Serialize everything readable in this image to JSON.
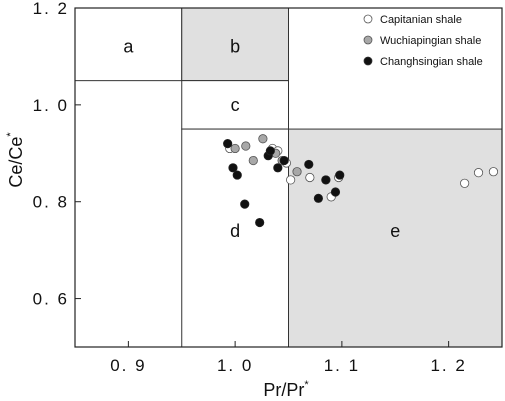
{
  "chart_data": {
    "type": "scatter",
    "xlabel": "Pr/Pr",
    "xlabel_sup": "*",
    "ylabel": "Ce/Ce",
    "ylabel_sup": "*",
    "xlim": [
      0.85,
      1.25
    ],
    "ylim": [
      0.5,
      1.2
    ],
    "xticks": [
      0.9,
      1.0,
      1.1,
      1.2
    ],
    "xtick_labels": [
      "0. 9",
      "1. 0",
      "1. 1",
      "1. 2"
    ],
    "yticks": [
      0.6,
      0.8,
      1.0,
      1.2
    ],
    "ytick_labels": [
      "0. 6",
      "0. 8",
      "1. 0",
      "1. 2"
    ],
    "legend_position": "top-right",
    "regions": [
      {
        "label": "a",
        "x": [
          0.85,
          0.95
        ],
        "y": [
          1.05,
          1.2
        ],
        "fill": "#ffffff"
      },
      {
        "label": "b",
        "x": [
          0.95,
          1.05
        ],
        "y": [
          1.05,
          1.2
        ],
        "fill": "#e0e0e0"
      },
      {
        "label": "c",
        "x": [
          0.95,
          1.05
        ],
        "y": [
          0.95,
          1.05
        ],
        "fill": "#ffffff"
      },
      {
        "label": "d",
        "x": [
          0.95,
          1.05
        ],
        "y": [
          0.5,
          0.95
        ],
        "fill": "#ffffff"
      },
      {
        "label": "e",
        "x": [
          1.05,
          1.25
        ],
        "y": [
          0.5,
          0.95
        ],
        "fill": "#e0e0e0"
      }
    ],
    "region_label_positions": [
      {
        "label": "a",
        "x": 0.9,
        "y": 1.12
      },
      {
        "label": "b",
        "x": 1.0,
        "y": 1.12
      },
      {
        "label": "c",
        "x": 1.0,
        "y": 1.0
      },
      {
        "label": "d",
        "x": 1.0,
        "y": 0.74
      },
      {
        "label": "e",
        "x": 1.15,
        "y": 0.74
      }
    ],
    "series": [
      {
        "name": "Capitanian shale",
        "fill": "#ffffff",
        "points": [
          [
            0.995,
            0.91
          ],
          [
            1.035,
            0.91
          ],
          [
            1.04,
            0.905
          ],
          [
            1.048,
            0.88
          ],
          [
            1.052,
            0.845
          ],
          [
            1.07,
            0.85
          ],
          [
            1.09,
            0.81
          ],
          [
            1.097,
            0.85
          ],
          [
            1.215,
            0.838
          ],
          [
            1.228,
            0.86
          ],
          [
            1.242,
            0.862
          ]
        ]
      },
      {
        "name": "Wuchiapingian shale",
        "fill": "#a8a8a8",
        "points": [
          [
            1.0,
            0.91
          ],
          [
            1.01,
            0.915
          ],
          [
            1.017,
            0.885
          ],
          [
            1.026,
            0.93
          ],
          [
            1.038,
            0.9
          ],
          [
            1.044,
            0.885
          ],
          [
            1.058,
            0.862
          ],
          [
            1.085,
            0.845
          ]
        ]
      },
      {
        "name": "Changhsingian shale",
        "fill": "#111111",
        "points": [
          [
            0.993,
            0.92
          ],
          [
            0.998,
            0.87
          ],
          [
            1.002,
            0.855
          ],
          [
            1.009,
            0.795
          ],
          [
            1.023,
            0.757
          ],
          [
            1.031,
            0.895
          ],
          [
            1.033,
            0.905
          ],
          [
            1.04,
            0.87
          ],
          [
            1.046,
            0.885
          ],
          [
            1.069,
            0.877
          ],
          [
            1.078,
            0.807
          ],
          [
            1.085,
            0.845
          ],
          [
            1.094,
            0.82
          ],
          [
            1.098,
            0.855
          ]
        ]
      }
    ]
  }
}
